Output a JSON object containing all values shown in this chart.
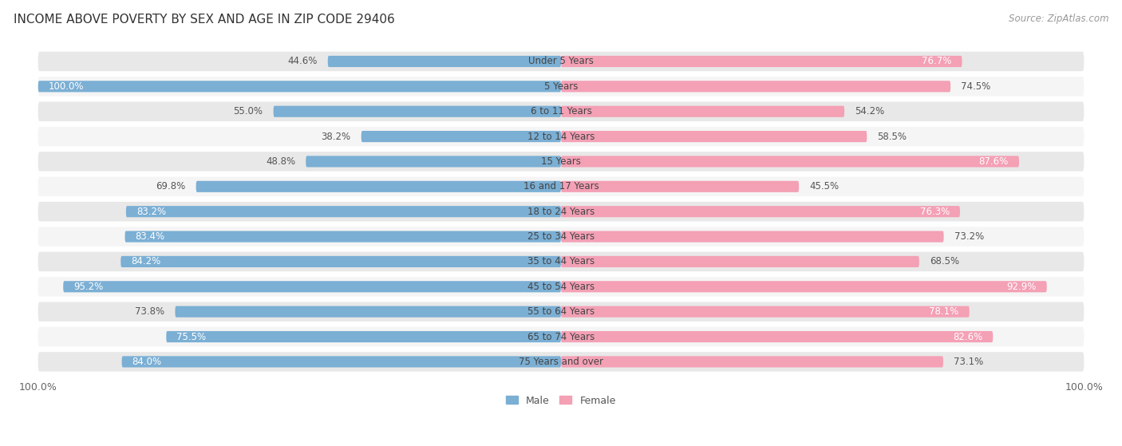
{
  "title": "INCOME ABOVE POVERTY BY SEX AND AGE IN ZIP CODE 29406",
  "source": "Source: ZipAtlas.com",
  "categories": [
    "Under 5 Years",
    "5 Years",
    "6 to 11 Years",
    "12 to 14 Years",
    "15 Years",
    "16 and 17 Years",
    "18 to 24 Years",
    "25 to 34 Years",
    "35 to 44 Years",
    "45 to 54 Years",
    "55 to 64 Years",
    "65 to 74 Years",
    "75 Years and over"
  ],
  "male": [
    44.6,
    100.0,
    55.0,
    38.2,
    48.8,
    69.8,
    83.2,
    83.4,
    84.2,
    95.2,
    73.8,
    75.5,
    84.0
  ],
  "female": [
    76.7,
    74.5,
    54.2,
    58.5,
    87.6,
    45.5,
    76.3,
    73.2,
    68.5,
    92.9,
    78.1,
    82.6,
    73.1
  ],
  "male_color": "#7bafd4",
  "female_color": "#f4a0b5",
  "male_label": "Male",
  "female_label": "Female",
  "background_row_even": "#e8e8e8",
  "background_row_odd": "#f5f5f5",
  "title_fontsize": 11,
  "source_fontsize": 8.5,
  "label_fontsize": 8.5,
  "tick_fontsize": 9,
  "xlim": 100.0,
  "legend_fontsize": 9,
  "male_inside_threshold": 75,
  "female_inside_threshold": 75
}
